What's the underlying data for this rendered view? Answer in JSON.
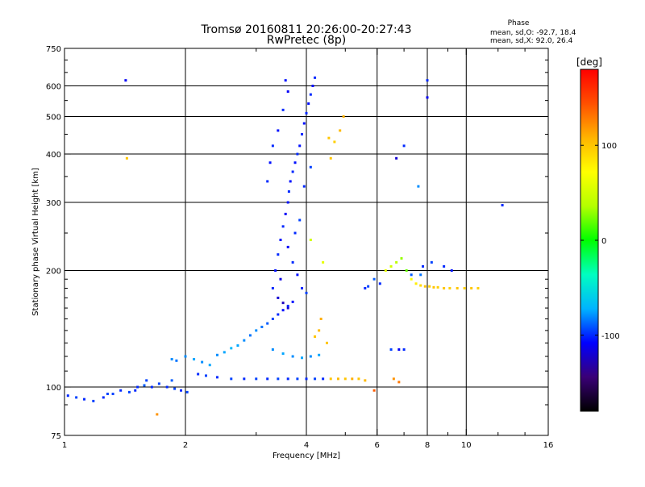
{
  "chart_data": {
    "type": "scatter",
    "title": "Tromsø 20160811 20:26:00-20:27:43",
    "subtitle": "RwPretec (8p)",
    "xlabel": "Frequency [MHz]",
    "ylabel": "Stationary phase Virtual Height [km]",
    "x_scale": "log",
    "y_scale": "log",
    "xlim": [
      1,
      16
    ],
    "ylim": [
      75,
      750
    ],
    "x_ticks": [
      1,
      2,
      4,
      6,
      8,
      10,
      16
    ],
    "x_minor_ticks": [
      3,
      5,
      7,
      9,
      12,
      14
    ],
    "y_ticks": [
      75,
      100,
      200,
      300,
      400,
      500,
      600,
      750
    ],
    "y_minor_ticks": [
      90,
      110,
      120,
      130,
      140,
      150,
      160,
      170,
      180,
      190,
      250,
      350,
      450,
      550,
      650,
      700
    ],
    "grid": true,
    "stats": {
      "header": "Phase",
      "line_o": "mean, sd,O: -92.7, 18.4",
      "line_x": "mean, sd,X:  92.0, 26.4"
    },
    "colorbar": {
      "label": "[deg]",
      "range": [
        -180,
        180
      ],
      "ticks": [
        -100,
        0,
        100
      ],
      "colors": [
        "#000000",
        "#3a0077",
        "#0000ff",
        "#00b4ff",
        "#00ffc0",
        "#00ff00",
        "#b4ff00",
        "#ffff00",
        "#ffb400",
        "#ff5000",
        "#ff0000"
      ]
    },
    "series": [
      {
        "points": [
          [
            1.02,
            95,
            -100
          ],
          [
            1.07,
            94,
            -95
          ],
          [
            1.12,
            93,
            -100
          ],
          [
            1.18,
            92,
            -95
          ],
          [
            1.25,
            94,
            -100
          ],
          [
            1.32,
            96,
            -95
          ],
          [
            1.38,
            98,
            -100
          ],
          [
            1.45,
            97,
            -95
          ],
          [
            1.52,
            100,
            -100
          ],
          [
            1.58,
            101,
            -90
          ],
          [
            1.65,
            100,
            -100
          ],
          [
            1.72,
            102,
            -95
          ],
          [
            1.8,
            100,
            -100
          ],
          [
            1.88,
            99,
            -95
          ],
          [
            1.95,
            98,
            -100
          ],
          [
            2.02,
            97,
            -95
          ],
          [
            1.85,
            104,
            -90
          ],
          [
            1.6,
            104,
            -95
          ],
          [
            1.5,
            98,
            -100
          ],
          [
            1.28,
            96,
            -95
          ],
          [
            1.42,
            620,
            -110
          ],
          [
            1.43,
            390,
            100
          ],
          [
            1.7,
            85,
            120
          ]
        ]
      },
      {
        "points": [
          [
            1.85,
            118,
            -80
          ],
          [
            1.9,
            117,
            -85
          ],
          [
            2.0,
            120,
            -80
          ],
          [
            2.1,
            118,
            -75
          ],
          [
            2.2,
            116,
            -80
          ],
          [
            2.3,
            114,
            -75
          ],
          [
            2.4,
            121,
            -80
          ],
          [
            2.5,
            123,
            -75
          ],
          [
            2.6,
            126,
            -70
          ],
          [
            2.7,
            128,
            -75
          ],
          [
            2.8,
            132,
            -80
          ],
          [
            2.9,
            136,
            -85
          ],
          [
            3.0,
            140,
            -80
          ],
          [
            3.1,
            143,
            -85
          ],
          [
            3.2,
            146,
            -90
          ],
          [
            3.3,
            150,
            -95
          ],
          [
            3.4,
            154,
            -100
          ],
          [
            3.5,
            158,
            -105
          ],
          [
            3.6,
            162,
            -100
          ],
          [
            3.7,
            166,
            -105
          ],
          [
            2.15,
            108,
            -100
          ],
          [
            2.25,
            107,
            -95
          ],
          [
            2.4,
            106,
            -100
          ],
          [
            2.6,
            105,
            -95
          ],
          [
            2.8,
            105,
            -100
          ],
          [
            3.0,
            105,
            -95
          ],
          [
            3.2,
            105,
            -100
          ],
          [
            3.4,
            105,
            -95
          ],
          [
            3.6,
            105,
            -100
          ],
          [
            3.8,
            105,
            -95
          ],
          [
            4.0,
            105,
            -100
          ],
          [
            4.2,
            105,
            -95
          ],
          [
            4.4,
            105,
            -100
          ],
          [
            3.3,
            125,
            -80
          ],
          [
            3.5,
            122,
            -75
          ],
          [
            3.7,
            120,
            -80
          ],
          [
            3.9,
            119,
            -75
          ],
          [
            4.1,
            120,
            -80
          ],
          [
            4.3,
            121,
            -75
          ]
        ]
      },
      {
        "points": [
          [
            3.3,
            180,
            -100
          ],
          [
            3.35,
            200,
            -105
          ],
          [
            3.4,
            220,
            -100
          ],
          [
            3.45,
            240,
            -105
          ],
          [
            3.5,
            260,
            -100
          ],
          [
            3.55,
            280,
            -110
          ],
          [
            3.6,
            300,
            -105
          ],
          [
            3.62,
            320,
            -100
          ],
          [
            3.65,
            340,
            -105
          ],
          [
            3.7,
            360,
            -100
          ],
          [
            3.75,
            380,
            -105
          ],
          [
            3.8,
            400,
            -100
          ],
          [
            3.85,
            420,
            -105
          ],
          [
            3.9,
            450,
            -100
          ],
          [
            3.95,
            480,
            -105
          ],
          [
            4.0,
            510,
            -100
          ],
          [
            4.05,
            540,
            -105
          ],
          [
            4.1,
            570,
            -100
          ],
          [
            4.15,
            600,
            -105
          ],
          [
            4.2,
            630,
            -100
          ],
          [
            3.2,
            340,
            -100
          ],
          [
            3.25,
            380,
            -105
          ],
          [
            3.3,
            420,
            -100
          ],
          [
            3.4,
            460,
            -105
          ],
          [
            3.5,
            520,
            -100
          ],
          [
            3.6,
            580,
            -110
          ],
          [
            3.55,
            620,
            -105
          ],
          [
            3.45,
            190,
            -115
          ],
          [
            3.6,
            230,
            -110
          ],
          [
            3.7,
            210,
            -100
          ],
          [
            3.8,
            195,
            -105
          ],
          [
            3.9,
            180,
            -100
          ],
          [
            4.0,
            175,
            -95
          ],
          [
            3.4,
            170,
            -120
          ],
          [
            3.5,
            165,
            -125
          ],
          [
            3.6,
            160,
            -120
          ],
          [
            3.75,
            250,
            -100
          ],
          [
            3.85,
            270,
            -95
          ],
          [
            3.95,
            330,
            -100
          ],
          [
            4.1,
            370,
            -95
          ]
        ]
      },
      {
        "points": [
          [
            4.6,
            105,
            100
          ],
          [
            4.8,
            105,
            105
          ],
          [
            5.0,
            105,
            100
          ],
          [
            5.2,
            105,
            110
          ],
          [
            5.4,
            105,
            100
          ],
          [
            5.6,
            104,
            105
          ],
          [
            4.55,
            440,
            100
          ],
          [
            4.7,
            430,
            95
          ],
          [
            4.85,
            460,
            105
          ],
          [
            4.95,
            500,
            110
          ],
          [
            4.6,
            390,
            100
          ],
          [
            4.3,
            140,
            105
          ],
          [
            4.2,
            135,
            100
          ],
          [
            4.35,
            150,
            110
          ],
          [
            4.5,
            130,
            100
          ],
          [
            4.4,
            210,
            60
          ],
          [
            4.1,
            240,
            50
          ]
        ]
      },
      {
        "points": [
          [
            5.6,
            180,
            -100
          ],
          [
            5.7,
            182,
            -95
          ],
          [
            5.9,
            190,
            -90
          ],
          [
            6.1,
            185,
            -100
          ],
          [
            6.3,
            200,
            60
          ],
          [
            6.5,
            205,
            50
          ],
          [
            6.7,
            210,
            40
          ],
          [
            6.9,
            215,
            30
          ],
          [
            7.1,
            200,
            20
          ],
          [
            7.3,
            190,
            70
          ],
          [
            7.5,
            185,
            80
          ],
          [
            7.7,
            183,
            90
          ],
          [
            7.9,
            182,
            100
          ],
          [
            8.1,
            182,
            95
          ],
          [
            8.3,
            181,
            100
          ],
          [
            8.5,
            181,
            95
          ],
          [
            8.8,
            180,
            100
          ],
          [
            9.1,
            180,
            95
          ],
          [
            9.5,
            180,
            100
          ],
          [
            9.9,
            180,
            95
          ],
          [
            10.3,
            180,
            100
          ],
          [
            10.7,
            180,
            95
          ],
          [
            6.5,
            125,
            -95
          ],
          [
            6.8,
            125,
            -110
          ],
          [
            7.0,
            125,
            -100
          ],
          [
            7.8,
            205,
            -100
          ],
          [
            8.2,
            210,
            -95
          ],
          [
            8.8,
            205,
            -100
          ],
          [
            9.2,
            200,
            -105
          ],
          [
            7.3,
            195,
            -90
          ],
          [
            7.7,
            195,
            -85
          ],
          [
            8.0,
            620,
            -100
          ],
          [
            8.0,
            560,
            -110
          ],
          [
            7.6,
            330,
            -80
          ],
          [
            7.0,
            420,
            -100
          ],
          [
            6.7,
            390,
            -120
          ],
          [
            12.3,
            295,
            -100
          ],
          [
            6.6,
            105,
            120
          ],
          [
            6.8,
            103,
            130
          ],
          [
            5.9,
            98,
            140
          ]
        ]
      }
    ]
  }
}
